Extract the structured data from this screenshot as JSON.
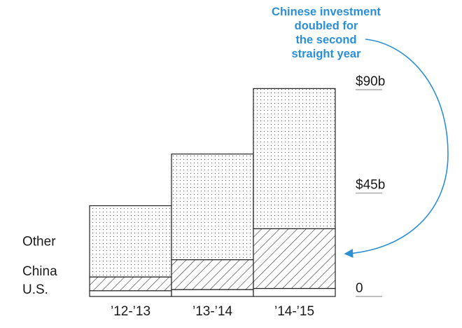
{
  "annotation": {
    "lines": [
      "Chinese investment",
      "doubled for",
      "the second",
      "straight year"
    ],
    "color": "#2b8fd6"
  },
  "chart_data": {
    "type": "bar",
    "stacked": true,
    "categories": [
      "’12-’13",
      "’13-’14",
      "’14-’15"
    ],
    "series": [
      {
        "name": "U.S.",
        "values": [
          2.5,
          3.0,
          3.5
        ]
      },
      {
        "name": "China",
        "values": [
          6.0,
          13.0,
          26.0
        ]
      },
      {
        "name": "Other",
        "values": [
          31.0,
          46.0,
          61.0
        ]
      }
    ],
    "y_ticks": [
      {
        "value": 0,
        "label": "0"
      },
      {
        "value": 45,
        "label": "$45b"
      },
      {
        "value": 90,
        "label": "$90b"
      }
    ],
    "ylim": [
      0,
      90
    ],
    "legend": "left, aligned with segments",
    "grid": false,
    "colors": {
      "bar_outline": "#222222",
      "tick_line": "#aaaaaa",
      "pattern": "#555555"
    }
  }
}
